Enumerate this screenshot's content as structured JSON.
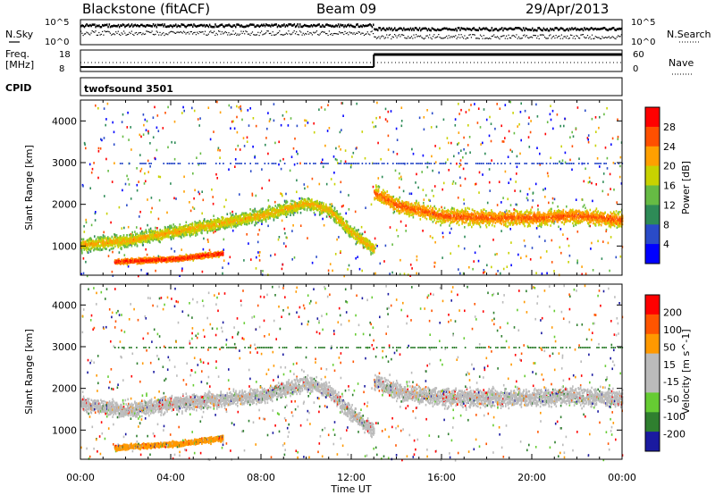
{
  "header": {
    "radar": "Blackstone (fitACF)",
    "beam": "Beam 09",
    "date": "29/Apr/2013"
  },
  "top_panels": {
    "nsky_label": "N.Sky",
    "nsearch_label": "N.Search",
    "noise_ticks": [
      "10^5",
      "10^0"
    ],
    "freq_label_1": "Freq.",
    "freq_label_2": "[MHz]",
    "freq_ticks": [
      "18",
      "8"
    ],
    "nave_label": "Nave",
    "nave_ticks": [
      "60",
      "0"
    ],
    "cpid_label": "CPID",
    "cpid_value": "twofsound 3501"
  },
  "colors": {
    "power_scale": [
      "#0000ff",
      "#2a4bc8",
      "#2e8b57",
      "#66bb44",
      "#c8d200",
      "#ffa000",
      "#ff5000",
      "#ff0000"
    ],
    "velocity_scale": [
      "#1a1aa0",
      "#2f7f2f",
      "#66cc33",
      "#bbbbbb",
      "#bbbbbb",
      "#ff9900",
      "#ff5500",
      "#ff0000"
    ],
    "gate_ground": "#c8c8c8"
  },
  "chart_data": [
    {
      "type": "heatmap",
      "name": "power",
      "ylabel": "Slant Range [km]",
      "yticks": [
        1000,
        2000,
        3000,
        4000
      ],
      "ylim": [
        300,
        4500
      ],
      "xlim": [
        0,
        24
      ],
      "colorbar_label": "Power [dB]",
      "colorbar_ticks": [
        "28",
        "24",
        "20",
        "16",
        "12",
        "8",
        "4"
      ],
      "bands": [
        {
          "t_start": 0.0,
          "t_end": 13.0,
          "profile": [
            [
              0,
              1050
            ],
            [
              2,
              1150
            ],
            [
              4,
              1350
            ],
            [
              6,
              1550
            ],
            [
              8,
              1750
            ],
            [
              10,
              2050
            ],
            [
              11,
              1900
            ],
            [
              12,
              1350
            ],
            [
              13,
              950
            ]
          ],
          "width": 220,
          "color_index": 5
        },
        {
          "t_start": 13.0,
          "t_end": 24.0,
          "profile": [
            [
              13,
              2300
            ],
            [
              14,
              2000
            ],
            [
              16,
              1750
            ],
            [
              18,
              1700
            ],
            [
              20,
              1700
            ],
            [
              22,
              1750
            ],
            [
              24,
              1650
            ]
          ],
          "width": 260,
          "color_index": 6
        },
        {
          "t_start": 1.5,
          "t_end": 6.3,
          "profile": [
            [
              1.5,
              650
            ],
            [
              3,
              680
            ],
            [
              4.5,
              730
            ],
            [
              5.5,
              800
            ],
            [
              6.3,
              850
            ]
          ],
          "width": 90,
          "color_index": 7
        }
      ]
    },
    {
      "type": "heatmap",
      "name": "velocity",
      "ylabel": "Slant Range [km]",
      "xlabel": "Time UT",
      "yticks": [
        1000,
        2000,
        3000,
        4000
      ],
      "ylim": [
        300,
        4500
      ],
      "xlim": [
        0,
        24
      ],
      "xticks": [
        "00:00",
        "04:00",
        "08:00",
        "12:00",
        "16:00",
        "20:00",
        "00:00"
      ],
      "colorbar_label": "Velocity [m s^-1]",
      "colorbar_ticks": [
        "200",
        "100",
        "50",
        "15",
        "-15",
        "-50",
        "-100",
        "-200"
      ],
      "bands": [
        {
          "t_start": 0.0,
          "t_end": 13.0,
          "profile": [
            [
              0,
              1650
            ],
            [
              2,
              1500
            ],
            [
              4,
              1650
            ],
            [
              6,
              1750
            ],
            [
              8,
              1850
            ],
            [
              10,
              2150
            ],
            [
              11,
              1950
            ],
            [
              12,
              1400
            ],
            [
              13,
              1000
            ]
          ],
          "width": 260,
          "color_index": 3
        },
        {
          "t_start": 13.0,
          "t_end": 24.0,
          "profile": [
            [
              13,
              2200
            ],
            [
              14,
              1950
            ],
            [
              16,
              1800
            ],
            [
              18,
              1800
            ],
            [
              20,
              1800
            ],
            [
              22,
              1850
            ],
            [
              24,
              1750
            ]
          ],
          "width": 300,
          "color_index": 3
        },
        {
          "t_start": 1.5,
          "t_end": 6.3,
          "profile": [
            [
              1.5,
              600
            ],
            [
              3,
              650
            ],
            [
              4.5,
              700
            ],
            [
              5.5,
              780
            ],
            [
              6.3,
              830
            ]
          ],
          "width": 90,
          "color_index": 5
        }
      ]
    }
  ]
}
